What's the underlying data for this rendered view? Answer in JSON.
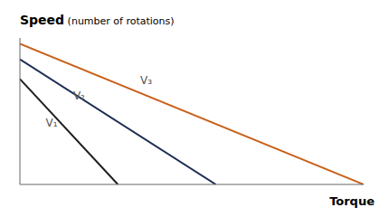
{
  "chart_data": {
    "type": "line",
    "title": "Speed (number of rotations)",
    "xlabel": "Torque",
    "xlim": [
      0,
      1
    ],
    "ylim": [
      0,
      1
    ],
    "tick_labels": false,
    "grid": false,
    "series": [
      {
        "name": "V₁",
        "color": "#1c1c1c",
        "x": [
          0.0,
          0.285
        ],
        "values": [
          0.72,
          0.0
        ]
      },
      {
        "name": "V₂",
        "color": "#1b2d52",
        "x": [
          0.0,
          0.57
        ],
        "values": [
          0.855,
          0.0
        ]
      },
      {
        "name": "V₃",
        "color": "#c8601a",
        "x": [
          0.0,
          1.0
        ],
        "values": [
          0.96,
          0.0
        ]
      }
    ]
  }
}
